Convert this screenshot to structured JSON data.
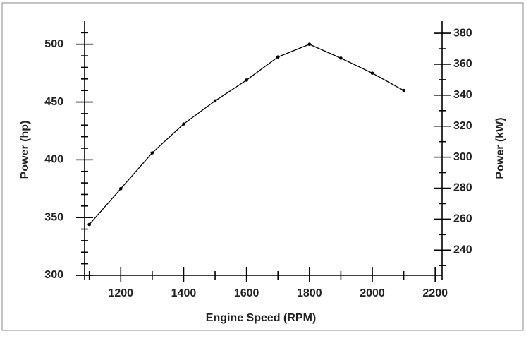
{
  "chart_data": {
    "type": "line",
    "x_label": "Engine Speed (RPM)",
    "y_label": "Power (hp)",
    "y2_label": "Power (kW)",
    "x": [
      1100,
      1200,
      1300,
      1400,
      1500,
      1600,
      1700,
      1800,
      1900,
      2000,
      2100
    ],
    "series": [
      {
        "color": "#000000",
        "values": [
          344,
          375,
          406,
          431,
          451,
          469,
          489,
          500,
          488,
          475,
          460
        ]
      }
    ],
    "xlim": [
      1085,
      2222
    ],
    "xticks": [
      1200,
      1400,
      1600,
      1800,
      2000,
      2200
    ],
    "xminorticks": [
      1100,
      1300,
      1500,
      1700,
      1900,
      2100
    ],
    "ylim": [
      300,
      520
    ],
    "yticks": [
      300,
      350,
      400,
      450,
      500
    ],
    "yminorticks": [
      310,
      320,
      330,
      340,
      360,
      370,
      380,
      390,
      410,
      420,
      430,
      440,
      460,
      470,
      480,
      490,
      510
    ],
    "y2lim": [
      223.7,
      387.8
    ],
    "y2ticks": [
      240,
      260,
      280,
      300,
      320,
      340,
      360,
      380
    ],
    "y2minorticks": [
      230,
      250,
      270,
      290,
      310,
      330,
      350,
      370
    ]
  }
}
